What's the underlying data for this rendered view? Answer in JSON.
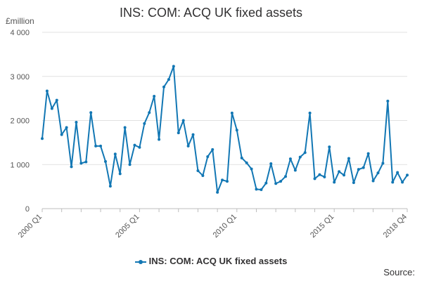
{
  "chart_data": {
    "type": "line",
    "title": "INS: COM: ACQ UK fixed assets",
    "unit_label": "£million",
    "source_label": "Source:",
    "ylim": [
      0,
      4000
    ],
    "y_ticks": [
      0,
      1000,
      2000,
      3000,
      4000
    ],
    "y_tick_labels": [
      "0",
      "1 000",
      "2 000",
      "3 000",
      "4 000"
    ],
    "x_tick_labels": [
      "2000 Q1",
      "2005 Q1",
      "2010 Q1",
      "2015 Q1",
      "2018 Q4"
    ],
    "x_tick_quarter_index": [
      0,
      20,
      40,
      60,
      75
    ],
    "grid": "horizontal",
    "legend_position": "bottom",
    "colors": {
      "series": "#1277b4"
    },
    "series": [
      {
        "name": "INS: COM: ACQ UK fixed assets",
        "start": "2000 Q1",
        "end": "2018 Q4",
        "frequency": "quarterly",
        "values": [
          1590,
          2670,
          2270,
          2460,
          1680,
          1840,
          950,
          1960,
          1030,
          1060,
          2180,
          1420,
          1420,
          1070,
          510,
          1240,
          790,
          1840,
          1000,
          1440,
          1390,
          1930,
          2180,
          2550,
          1570,
          2760,
          2930,
          3230,
          1720,
          2000,
          1420,
          1680,
          860,
          750,
          1180,
          1340,
          370,
          650,
          620,
          2170,
          1780,
          1150,
          1040,
          900,
          440,
          430,
          580,
          1020,
          570,
          620,
          730,
          1130,
          870,
          1170,
          1270,
          2170,
          680,
          770,
          720,
          1400,
          600,
          840,
          760,
          1140,
          590,
          890,
          930,
          1250,
          630,
          810,
          1030,
          2440,
          600,
          820,
          600,
          760
        ]
      }
    ]
  }
}
